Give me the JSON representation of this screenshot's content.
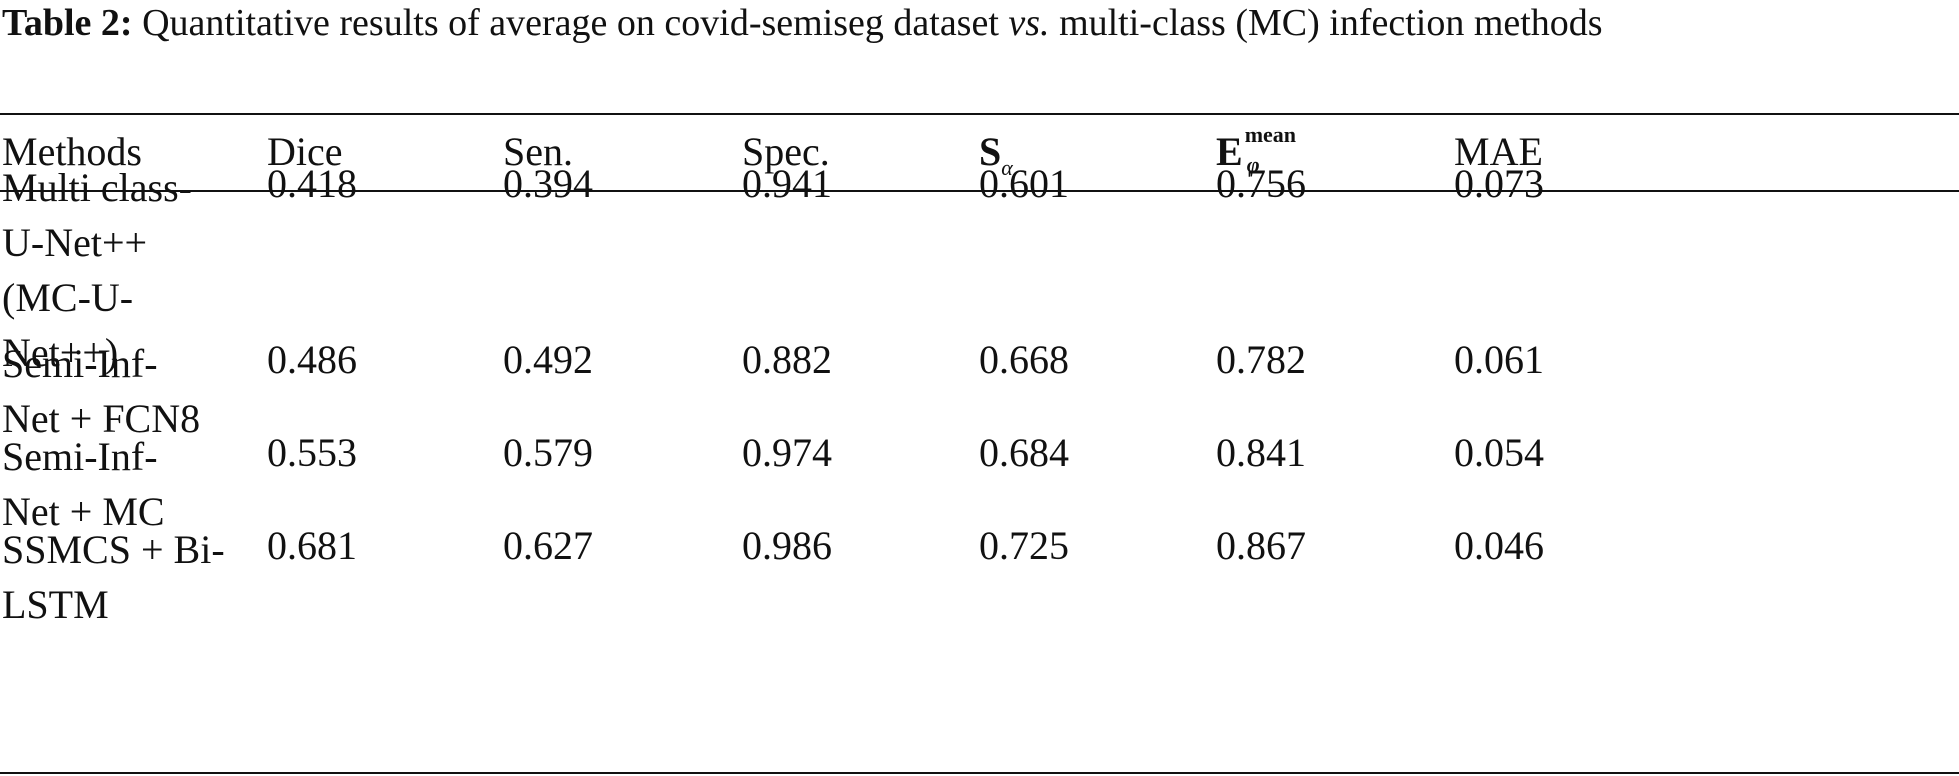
{
  "caption": {
    "label": "Table 2:",
    "text_before": " Quantitative results of average on covid-semiseg dataset ",
    "vs": "vs.",
    "text_after": " multi-class (MC) infection methods"
  },
  "table": {
    "headers": {
      "methods": "Methods",
      "dice": "Dice",
      "sen": "Sen.",
      "spec": "Spec.",
      "s_main": "S",
      "s_sub": "α",
      "e_main": "E",
      "e_sup": "mean",
      "e_sub": "φ",
      "mae": "MAE"
    },
    "rows": [
      {
        "method_lines": [
          "Multi class-",
          "U-Net++",
          "(MC-U-",
          "Net++)"
        ],
        "dice": "0.418",
        "sen": "0.394",
        "spec": "0.941",
        "s": "0.601",
        "e": "0.756",
        "mae": "0.073"
      },
      {
        "method_lines": [
          "Semi-Inf-",
          "Net + FCN8"
        ],
        "dice": "0.486",
        "sen": "0.492",
        "spec": "0.882",
        "s": "0.668",
        "e": "0.782",
        "mae": "0.061"
      },
      {
        "method_lines": [
          "Semi-Inf-",
          "Net + MC"
        ],
        "dice": "0.553",
        "sen": "0.579",
        "spec": "0.974",
        "s": "0.684",
        "e": "0.841",
        "mae": "0.054"
      },
      {
        "method_lines": [
          "SSMCS + Bi-",
          "LSTM"
        ],
        "dice": "0.681",
        "sen": "0.627",
        "spec": "0.986",
        "s": "0.725",
        "e": "0.867",
        "mae": "0.046"
      }
    ]
  }
}
